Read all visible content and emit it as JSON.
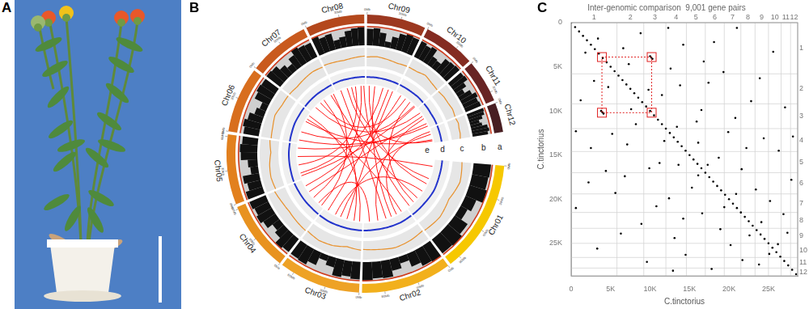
{
  "panel_labels": [
    "A",
    "B",
    "C"
  ],
  "circos": {
    "track_labels": [
      "a",
      "b",
      "c",
      "d",
      "e"
    ],
    "ring_ticks": [
      {
        "value": 0,
        "label": "0Mb"
      },
      {
        "value": 30,
        "label": "30Mb"
      },
      {
        "value": 60,
        "label": "60Mb"
      },
      {
        "value": 90,
        "label": "90Mb"
      }
    ],
    "chromosomes": [
      {
        "name": "Chr01",
        "length": 100,
        "color": "#f6c800",
        "track_b": [
          0.9,
          0.85,
          0.95,
          0.6,
          0.4,
          0.8,
          0.95,
          0.9
        ],
        "track_c": [
          0.5,
          0.6,
          0.4,
          0.55,
          0.5
        ],
        "track_d": [
          0.5,
          0.5,
          0.55,
          0.5,
          0.5
        ]
      },
      {
        "name": "Chr02",
        "length": 80,
        "color": "#f2b01c",
        "track_b": [
          0.95,
          0.9,
          0.7,
          0.35,
          0.6,
          0.9,
          0.85,
          0.95
        ],
        "track_c": [
          0.45,
          0.55,
          0.6,
          0.5,
          0.45
        ],
        "track_d": [
          0.5,
          0.52,
          0.5,
          0.48,
          0.5
        ]
      },
      {
        "name": "Chr03",
        "length": 72,
        "color": "#eea226",
        "track_b": [
          0.9,
          0.8,
          0.9,
          0.5,
          0.3,
          0.7,
          0.9,
          0.85
        ],
        "track_c": [
          0.5,
          0.4,
          0.55,
          0.6,
          0.5
        ],
        "track_d": [
          0.5,
          0.5,
          0.5,
          0.52,
          0.5
        ]
      },
      {
        "name": "Chr04",
        "length": 62,
        "color": "#e8921f",
        "track_b": [
          0.85,
          0.95,
          0.6,
          0.45,
          0.75,
          0.9,
          0.8,
          0.9
        ],
        "track_c": [
          0.55,
          0.5,
          0.45,
          0.5,
          0.6
        ],
        "track_d": [
          0.5,
          0.48,
          0.5,
          0.5,
          0.52
        ]
      },
      {
        "name": "Chr05",
        "length": 62,
        "color": "#e2801e",
        "track_b": [
          0.9,
          0.7,
          0.85,
          0.4,
          0.5,
          0.85,
          0.9,
          0.8
        ],
        "track_c": [
          0.5,
          0.55,
          0.5,
          0.4,
          0.5
        ],
        "track_d": [
          0.52,
          0.5,
          0.5,
          0.5,
          0.48
        ]
      },
      {
        "name": "Chr06",
        "length": 58,
        "color": "#d86e1e",
        "track_b": [
          0.8,
          0.9,
          0.75,
          0.5,
          0.35,
          0.8,
          0.9,
          0.85
        ],
        "track_c": [
          0.45,
          0.5,
          0.6,
          0.5,
          0.5
        ],
        "track_d": [
          0.5,
          0.5,
          0.52,
          0.5,
          0.5
        ]
      },
      {
        "name": "Chr07",
        "length": 54,
        "color": "#c95a1e",
        "track_b": [
          0.9,
          0.85,
          0.6,
          0.4,
          0.7,
          0.95,
          0.85,
          0.8
        ],
        "track_c": [
          0.5,
          0.45,
          0.5,
          0.55,
          0.5
        ],
        "track_d": [
          0.5,
          0.5,
          0.5,
          0.48,
          0.5
        ]
      },
      {
        "name": "Chr08",
        "length": 52,
        "color": "#b4481c",
        "track_b": [
          0.95,
          0.8,
          0.85,
          0.45,
          0.55,
          0.8,
          0.9,
          0.95
        ],
        "track_c": [
          0.55,
          0.5,
          0.45,
          0.5,
          0.55
        ],
        "track_d": [
          0.5,
          0.52,
          0.5,
          0.5,
          0.5
        ]
      },
      {
        "name": "Chr09",
        "length": 52,
        "color": "#9c3820",
        "track_b": [
          0.85,
          0.9,
          0.7,
          0.3,
          0.6,
          0.85,
          0.95,
          0.9
        ],
        "track_c": [
          0.5,
          0.55,
          0.5,
          0.45,
          0.5
        ],
        "track_d": [
          0.48,
          0.5,
          0.5,
          0.5,
          0.5
        ]
      },
      {
        "name": "Chr10",
        "length": 46,
        "color": "#842c22",
        "track_b": [
          0.9,
          0.8,
          0.9,
          0.5,
          0.45,
          0.8,
          0.85,
          0.9
        ],
        "track_c": [
          0.5,
          0.5,
          0.6,
          0.5,
          0.45
        ],
        "track_d": [
          0.5,
          0.5,
          0.5,
          0.52,
          0.5
        ]
      },
      {
        "name": "Chr11",
        "length": 38,
        "color": "#682424",
        "track_b": [
          0.85,
          0.9,
          0.65,
          0.4,
          0.7,
          0.9,
          0.8,
          0.85
        ],
        "track_c": [
          0.45,
          0.5,
          0.5,
          0.55,
          0.5
        ],
        "track_d": [
          0.5,
          0.5,
          0.48,
          0.5,
          0.5
        ]
      },
      {
        "name": "Chr12",
        "length": 26,
        "color": "#481e22",
        "track_b": [
          0.9,
          0.85,
          0.7,
          0.5,
          0.6,
          0.85,
          0.9,
          0.8
        ],
        "track_c": [
          0.5,
          0.55,
          0.5,
          0.5,
          0.45
        ],
        "track_d": [
          0.5,
          0.5,
          0.5,
          0.5,
          0.5
        ]
      }
    ],
    "links": [
      [
        "Chr01",
        12,
        "Chr05",
        40
      ],
      [
        "Chr01",
        35,
        "Chr08",
        20
      ],
      [
        "Chr01",
        60,
        "Chr03",
        50
      ],
      [
        "Chr01",
        85,
        "Chr10",
        30
      ],
      [
        "Chr02",
        10,
        "Chr06",
        45
      ],
      [
        "Chr02",
        30,
        "Chr09",
        15
      ],
      [
        "Chr02",
        55,
        "Chr11",
        20
      ],
      [
        "Chr02",
        70,
        "Chr04",
        12
      ],
      [
        "Chr03",
        15,
        "Chr07",
        30
      ],
      [
        "Chr03",
        40,
        "Chr12",
        10
      ],
      [
        "Chr03",
        65,
        "Chr09",
        40
      ],
      [
        "Chr04",
        25,
        "Chr08",
        45
      ],
      [
        "Chr04",
        50,
        "Chr10",
        10
      ],
      [
        "Chr05",
        10,
        "Chr09",
        30
      ],
      [
        "Chr05",
        55,
        "Chr11",
        30
      ],
      [
        "Chr06",
        20,
        "Chr10",
        40
      ],
      [
        "Chr06",
        40,
        "Chr12",
        20
      ],
      [
        "Chr07",
        10,
        "Chr11",
        8
      ],
      [
        "Chr07",
        45,
        "Chr01",
        75
      ],
      [
        "Chr08",
        8,
        "Chr02",
        40
      ],
      [
        "Chr08",
        35,
        "Chr05",
        25
      ],
      [
        "Chr09",
        48,
        "Chr03",
        28
      ],
      [
        "Chr10",
        20,
        "Chr07",
        22
      ],
      [
        "Chr11",
        15,
        "Chr04",
        38
      ],
      [
        "Chr12",
        5,
        "Chr02",
        20
      ],
      [
        "Chr09",
        5,
        "Chr01",
        45
      ],
      [
        "Chr06",
        52,
        "Chr03",
        5
      ],
      [
        "Chr10",
        42,
        "Chr05",
        5
      ],
      [
        "Chr08",
        50,
        "Chr01",
        95
      ],
      [
        "Chr04",
        5,
        "Chr07",
        50
      ],
      [
        "Chr11",
        35,
        "Chr06",
        5
      ],
      [
        "Chr12",
        22,
        "Chr08",
        28
      ]
    ]
  },
  "chart_data": {
    "type": "scatter",
    "title": "Inter-genomic comparison  9,001 gene pairs",
    "x_label": "C.tinctorius",
    "y_label": "C.tinctorius",
    "xlim": [
      0,
      28700
    ],
    "ylim": [
      0,
      28700
    ],
    "xticks": [
      0,
      {
        "value": 5000,
        "label": "5K"
      },
      {
        "value": 10000,
        "label": "10K"
      },
      {
        "value": 15000,
        "label": "15K"
      },
      {
        "value": 20000,
        "label": "20K"
      },
      {
        "value": 25000,
        "label": "25K"
      }
    ],
    "yticks": [
      0,
      {
        "value": 5000,
        "label": "5K"
      },
      {
        "value": 10000,
        "label": "10K"
      },
      {
        "value": 15000,
        "label": "15K"
      },
      {
        "value": 20000,
        "label": "20K"
      },
      {
        "value": 25000,
        "label": "25K"
      }
    ],
    "grid": false,
    "color": "#000000",
    "marker": "circle",
    "chromosome_bounds": [
      0,
      5800,
      9200,
      12000,
      14600,
      17000,
      19400,
      21500,
      23300,
      25000,
      26600,
      27800,
      28700
    ],
    "chromosome_labels": [
      "1",
      "2",
      "3",
      "4",
      "5",
      "6",
      "7",
      "8",
      "9",
      "10",
      "11",
      "12"
    ],
    "highlight": {
      "x": [
        3900,
        10200
      ],
      "y": [
        3900,
        10200
      ],
      "color": "#e02020"
    },
    "points": [
      [
        0,
        0
      ],
      [
        500,
        500
      ],
      [
        1000,
        1000
      ],
      [
        1500,
        1500
      ],
      [
        2000,
        2000
      ],
      [
        2500,
        2500
      ],
      [
        3000,
        3000
      ],
      [
        3500,
        3500
      ],
      [
        4000,
        4000
      ],
      [
        4500,
        4500
      ],
      [
        5000,
        5000
      ],
      [
        5500,
        5500
      ],
      [
        6000,
        6000
      ],
      [
        6500,
        6500
      ],
      [
        7000,
        7000
      ],
      [
        7500,
        7500
      ],
      [
        8000,
        8000
      ],
      [
        8500,
        8500
      ],
      [
        9000,
        9000
      ],
      [
        9500,
        9500
      ],
      [
        10000,
        10000
      ],
      [
        10500,
        10500
      ],
      [
        11000,
        11000
      ],
      [
        11500,
        11500
      ],
      [
        12000,
        12000
      ],
      [
        12500,
        12500
      ],
      [
        13000,
        13000
      ],
      [
        13500,
        13500
      ],
      [
        14000,
        14000
      ],
      [
        14500,
        14500
      ],
      [
        15000,
        15000
      ],
      [
        15500,
        15500
      ],
      [
        16000,
        16000
      ],
      [
        16500,
        16500
      ],
      [
        17000,
        17000
      ],
      [
        17500,
        17500
      ],
      [
        18000,
        18000
      ],
      [
        18500,
        18500
      ],
      [
        19000,
        19000
      ],
      [
        19500,
        19500
      ],
      [
        20000,
        20000
      ],
      [
        20500,
        20500
      ],
      [
        21000,
        21000
      ],
      [
        21500,
        21500
      ],
      [
        22000,
        22000
      ],
      [
        22500,
        22500
      ],
      [
        23000,
        23000
      ],
      [
        23500,
        23500
      ],
      [
        24000,
        24000
      ],
      [
        24500,
        24500
      ],
      [
        25000,
        25000
      ],
      [
        25500,
        25500
      ],
      [
        26000,
        26000
      ],
      [
        26500,
        26500
      ],
      [
        27000,
        27000
      ],
      [
        27500,
        27500
      ],
      [
        28000,
        28000
      ],
      [
        28500,
        28500
      ],
      [
        3800,
        10000
      ],
      [
        3950,
        10150
      ],
      [
        4100,
        10300
      ],
      [
        1200,
        8800
      ],
      [
        2500,
        14200
      ],
      [
        600,
        21000
      ],
      [
        3300,
        25600
      ],
      [
        5200,
        12600
      ],
      [
        6800,
        17400
      ],
      [
        7600,
        9800
      ],
      [
        8900,
        22800
      ],
      [
        9600,
        27100
      ],
      [
        11200,
        15900
      ],
      [
        12400,
        19900
      ],
      [
        13100,
        24400
      ],
      [
        14500,
        26300
      ],
      [
        15300,
        18700
      ],
      [
        16600,
        21600
      ],
      [
        17800,
        27900
      ],
      [
        18900,
        23400
      ],
      [
        20200,
        25200
      ],
      [
        21700,
        26900
      ],
      [
        22600,
        24100
      ],
      [
        1800,
        3400
      ],
      [
        2900,
        6600
      ],
      [
        4700,
        7300
      ],
      [
        5600,
        19300
      ],
      [
        7100,
        13800
      ],
      [
        8200,
        11500
      ],
      [
        9900,
        16500
      ],
      [
        10800,
        20800
      ],
      [
        11800,
        13400
      ],
      [
        13600,
        16100
      ],
      [
        14200,
        22200
      ],
      [
        16100,
        17300
      ],
      [
        19400,
        20900
      ],
      [
        23800,
        27400
      ],
      [
        25100,
        26200
      ],
      [
        600,
        12300
      ],
      [
        2200,
        18100
      ],
      [
        6300,
        23900
      ],
      [
        12900,
        28100
      ],
      [
        4400,
        16800
      ],
      [
        10000,
        3800
      ],
      [
        10150,
        3950
      ],
      [
        10300,
        4100
      ],
      [
        8800,
        1200
      ],
      [
        14200,
        2500
      ],
      [
        21000,
        600
      ],
      [
        25600,
        3300
      ],
      [
        12600,
        5200
      ],
      [
        17400,
        6800
      ],
      [
        9800,
        7600
      ],
      [
        22800,
        8900
      ],
      [
        27100,
        9600
      ],
      [
        15900,
        11200
      ],
      [
        19900,
        12400
      ],
      [
        24400,
        13100
      ],
      [
        26300,
        14500
      ],
      [
        18700,
        15300
      ],
      [
        21600,
        16600
      ],
      [
        27900,
        17800
      ],
      [
        23400,
        18900
      ],
      [
        25200,
        20200
      ],
      [
        26900,
        21700
      ],
      [
        24100,
        22600
      ],
      [
        3400,
        1800
      ],
      [
        6600,
        2900
      ],
      [
        7300,
        4700
      ],
      [
        19300,
        5600
      ],
      [
        13800,
        7100
      ],
      [
        11500,
        8200
      ],
      [
        16500,
        9900
      ],
      [
        20800,
        10800
      ],
      [
        13400,
        11800
      ],
      [
        16100,
        13600
      ],
      [
        22200,
        14200
      ],
      [
        17300,
        16100
      ],
      [
        20900,
        19400
      ],
      [
        27400,
        23800
      ],
      [
        26200,
        25100
      ],
      [
        12300,
        600
      ],
      [
        18100,
        2200
      ],
      [
        23900,
        6300
      ],
      [
        28100,
        12900
      ],
      [
        16800,
        4400
      ]
    ]
  }
}
